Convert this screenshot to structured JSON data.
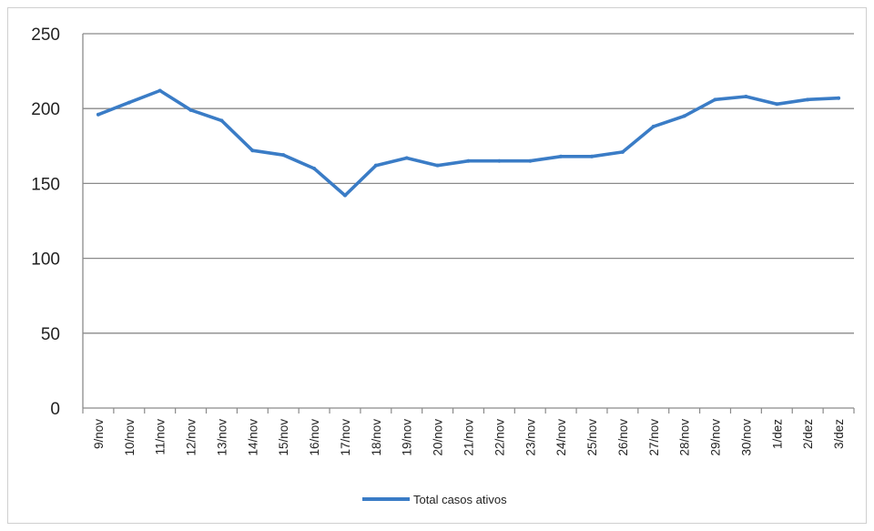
{
  "chart_data": {
    "type": "line",
    "categories": [
      "9/nov",
      "10/nov",
      "11/nov",
      "12/nov",
      "13/nov",
      "14/nov",
      "15/nov",
      "16/nov",
      "17/nov",
      "18/nov",
      "19/nov",
      "20/nov",
      "21/nov",
      "22/nov",
      "23/nov",
      "24/nov",
      "25/nov",
      "26/nov",
      "27/nov",
      "28/nov",
      "29/nov",
      "30/nov",
      "1/dez",
      "2/dez",
      "3/dez"
    ],
    "series": [
      {
        "name": "Total casos ativos",
        "color": "#3a7cc6",
        "values": [
          196,
          204,
          212,
          199,
          192,
          172,
          169,
          160,
          142,
          162,
          167,
          162,
          165,
          165,
          165,
          168,
          168,
          171,
          188,
          195,
          206,
          208,
          203,
          206,
          207
        ]
      }
    ],
    "ylim": [
      0,
      250
    ],
    "yticks": [
      0,
      50,
      100,
      150,
      200,
      250
    ],
    "grid": true,
    "legend": "bottom"
  }
}
